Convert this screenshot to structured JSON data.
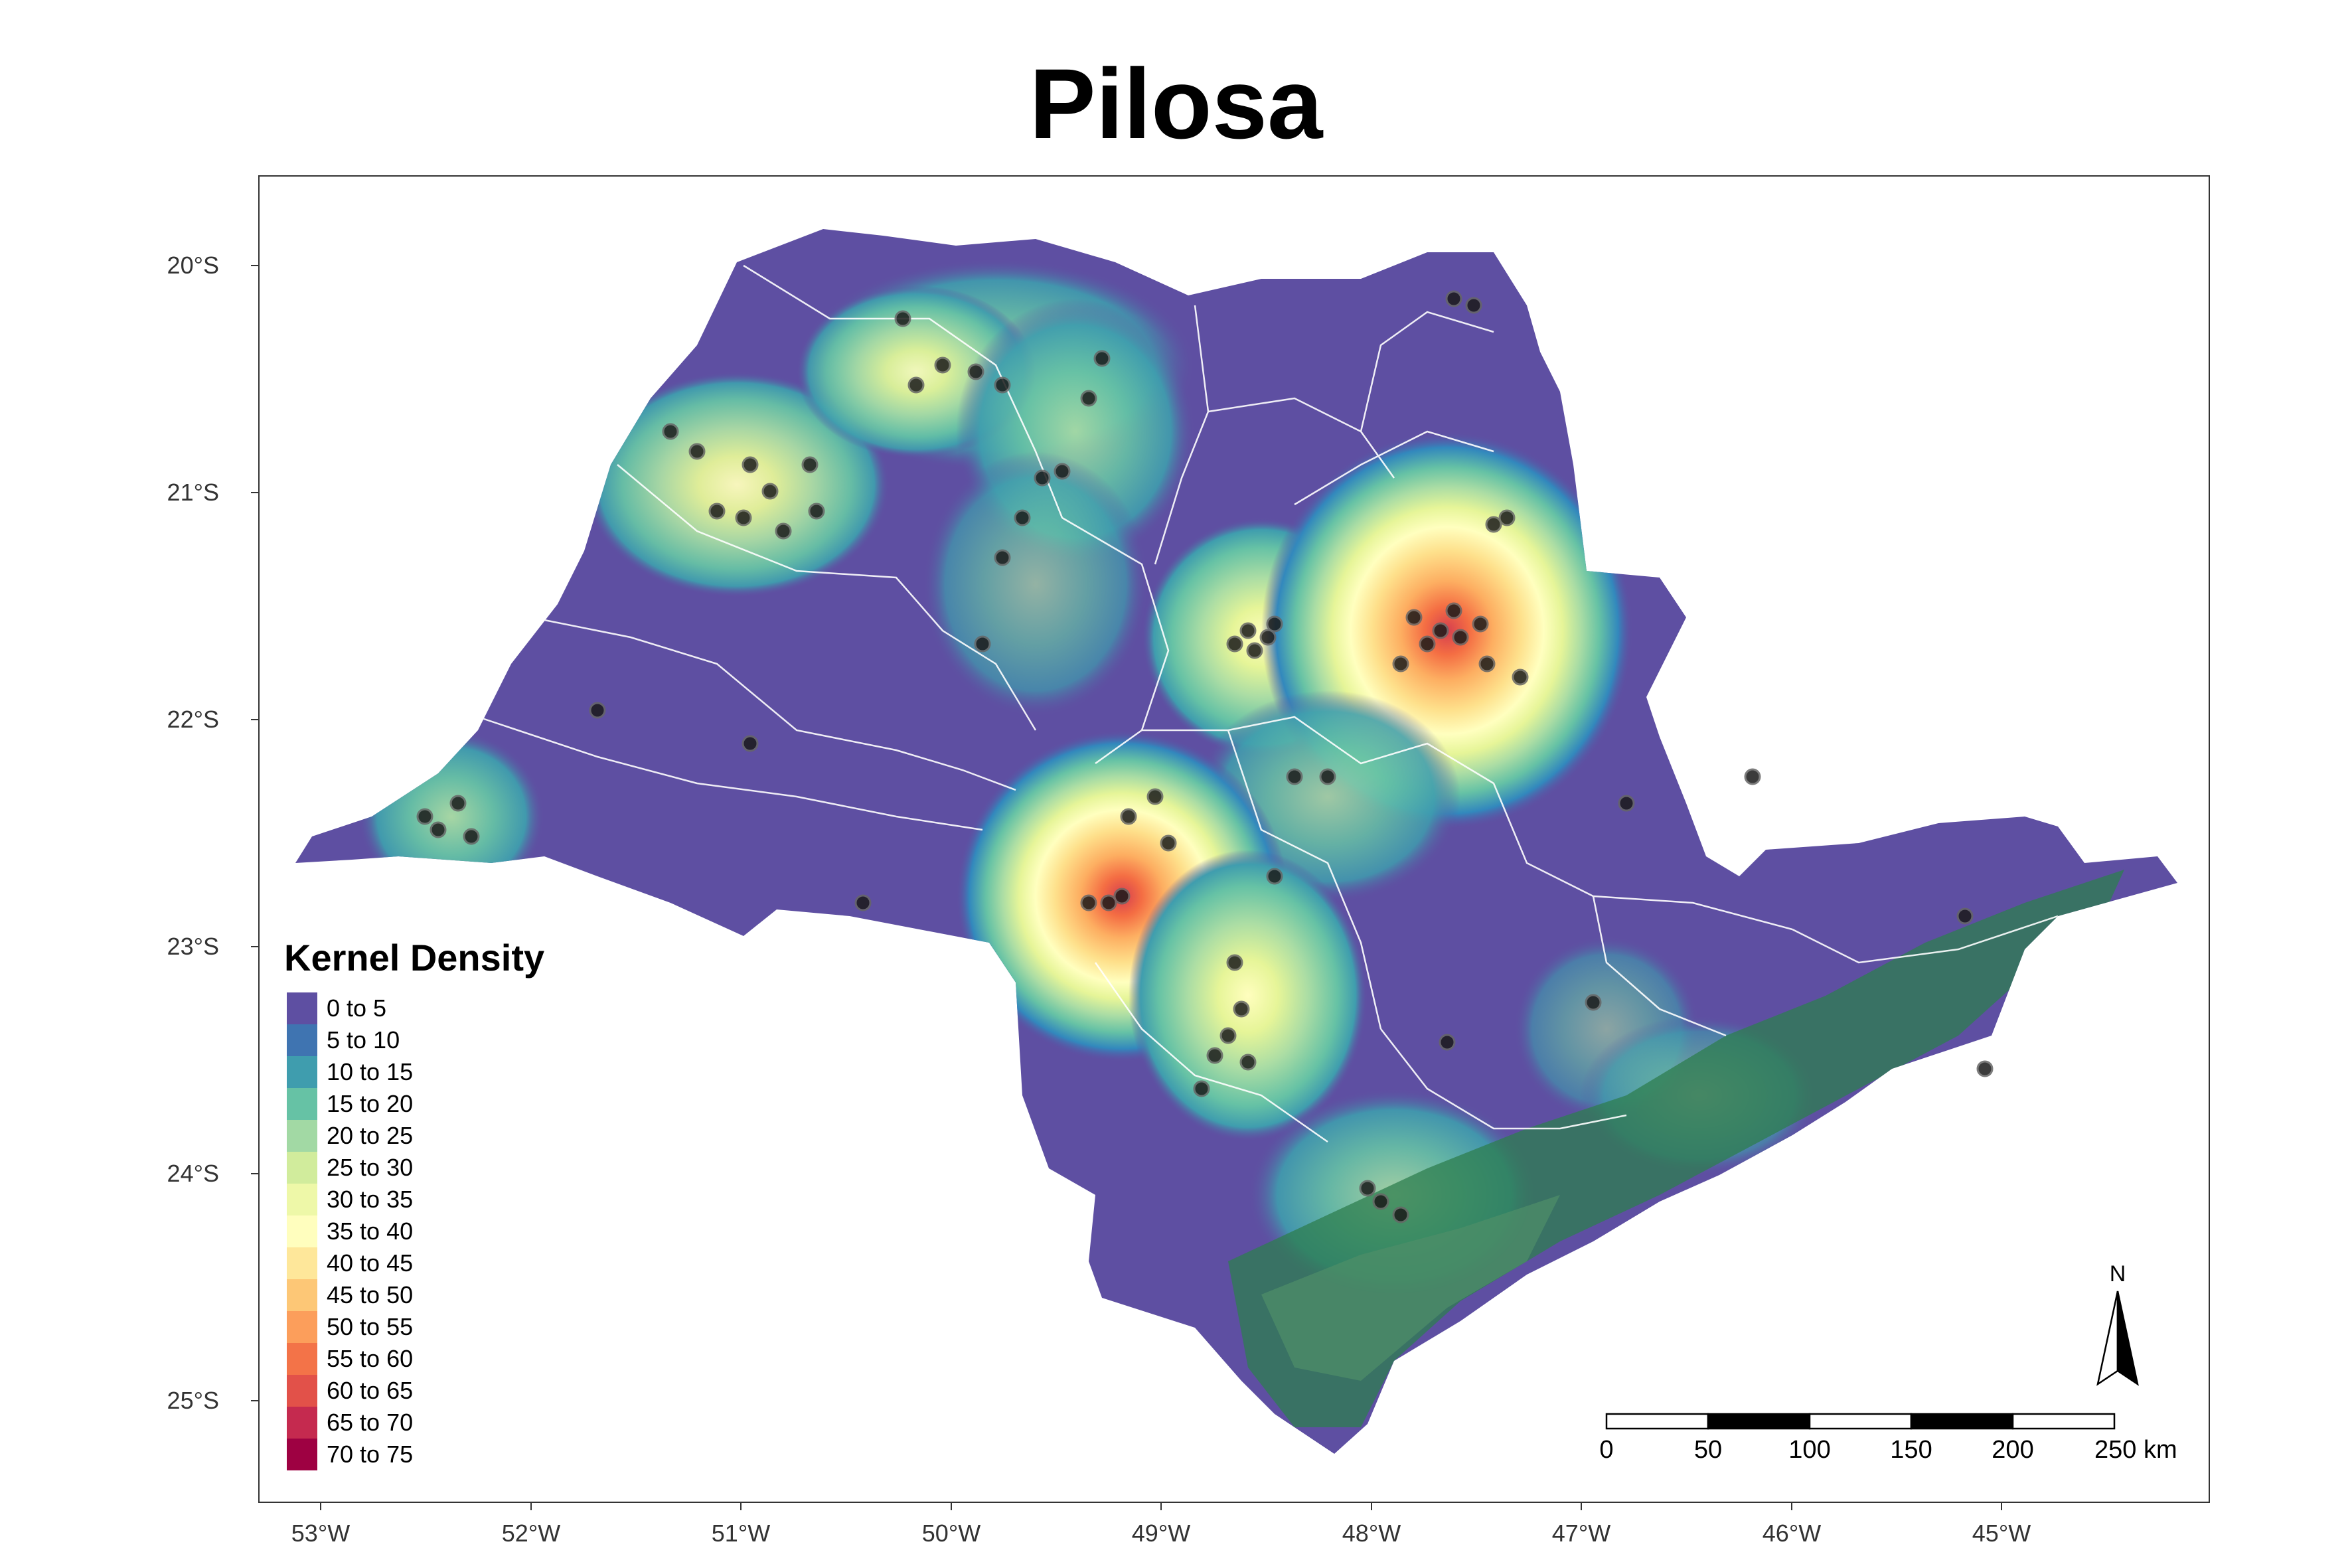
{
  "title": "Pilosa",
  "axes": {
    "x_ticks": [
      "53°W",
      "52°W",
      "51°W",
      "50°W",
      "49°W",
      "48°W",
      "47°W",
      "46°W",
      "45°W"
    ],
    "y_ticks": [
      "20°S",
      "21°S",
      "22°S",
      "23°S",
      "24°S",
      "25°S"
    ]
  },
  "legend": {
    "title": "Kernel Density",
    "items": [
      {
        "label": "0 to 5",
        "color": "#5e4fa2"
      },
      {
        "label": "5 to 10",
        "color": "#3f74b1"
      },
      {
        "label": "10 to 15",
        "color": "#3f9dae"
      },
      {
        "label": "15 to 20",
        "color": "#66c2a5"
      },
      {
        "label": "20 to 25",
        "color": "#a2d9a4"
      },
      {
        "label": "25 to 30",
        "color": "#d1ec9c"
      },
      {
        "label": "30 to 35",
        "color": "#eef8a8"
      },
      {
        "label": "35 to 40",
        "color": "#fffebe"
      },
      {
        "label": "40 to 45",
        "color": "#fee79a"
      },
      {
        "label": "45 to 50",
        "color": "#fdc776"
      },
      {
        "label": "50 to 55",
        "color": "#fc9e5b"
      },
      {
        "label": "55 to 60",
        "color": "#f37348"
      },
      {
        "label": "60 to 65",
        "color": "#e25149"
      },
      {
        "label": "65 to 70",
        "color": "#c52a4f"
      },
      {
        "label": "70 to 75",
        "color": "#9e0142"
      }
    ]
  },
  "scale_bar": {
    "labels": [
      "0",
      "50",
      "100",
      "150",
      "200",
      "250 km"
    ]
  },
  "north_arrow": {
    "label": "N"
  }
}
